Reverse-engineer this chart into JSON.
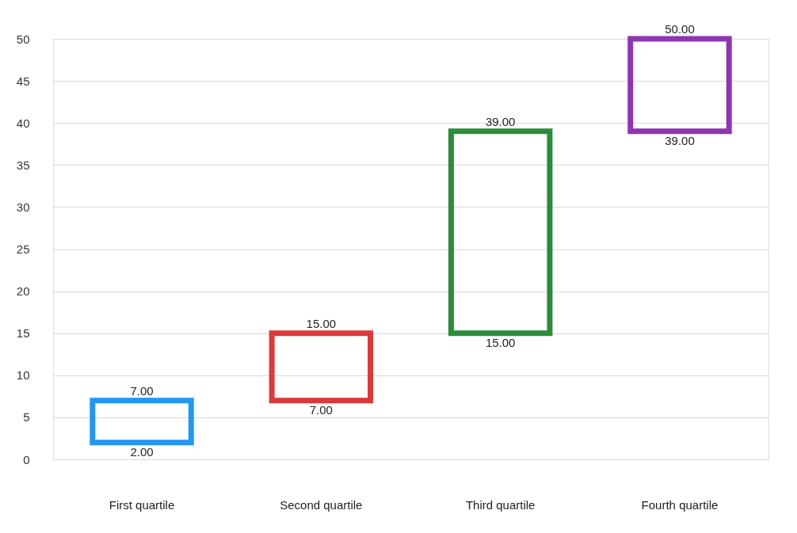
{
  "chart_data": {
    "type": "bar",
    "categories": [
      "First quartile",
      "Second quartile",
      "Third quartile",
      "Fourth quartile"
    ],
    "base": [
      2,
      7,
      15,
      39
    ],
    "values": [
      5,
      8,
      24,
      11
    ],
    "colors": [
      "#2196f3",
      "#d93a3a",
      "#2e8b3a",
      "#8e35b0"
    ],
    "ylim": [
      0,
      50
    ],
    "yticks": [
      0,
      5,
      10,
      15,
      20,
      25,
      30,
      35,
      40,
      45,
      50
    ],
    "grid": "y",
    "annotations": [
      {
        "text": "7.00",
        "x": "First quartile",
        "y": 7
      },
      {
        "text": "2.00",
        "x": "First quartile",
        "y": 2
      },
      {
        "text": "15.00",
        "x": "Second quartile",
        "y": 15
      },
      {
        "text": "7.00",
        "x": "Second quartile",
        "y": 7
      },
      {
        "text": "39.00",
        "x": "Third quartile",
        "y": 39
      },
      {
        "text": "15.00",
        "x": "Third quartile",
        "y": 15
      },
      {
        "text": "50.00",
        "x": "Fourth quartile",
        "y": 50
      },
      {
        "text": "39.00",
        "x": "Fourth quartile",
        "y": 39
      }
    ]
  }
}
